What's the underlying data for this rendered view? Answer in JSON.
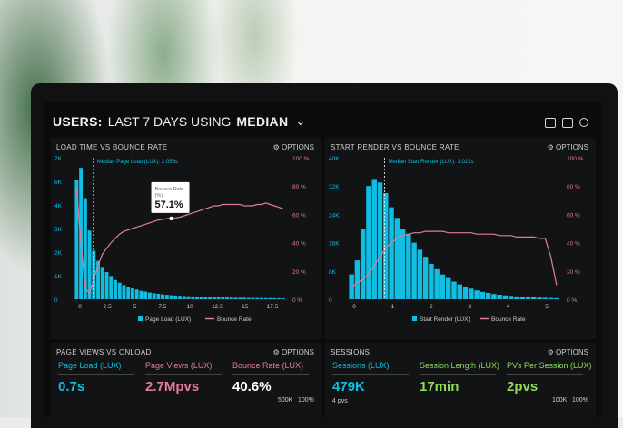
{
  "header": {
    "title_bold": "USERS:",
    "title_rest": "LAST 7 DAYS USING",
    "title_metric": "MEDIAN"
  },
  "options_label": "OPTIONS",
  "colors": {
    "cyan": "#11bde0",
    "pink": "#e47aa0",
    "green": "#8ddb5b",
    "bg": "#0b0b0c",
    "panel": "#121315"
  },
  "icons": [
    "monitor-icon",
    "window-icon",
    "help-icon"
  ],
  "chart_data": [
    {
      "type": "bar",
      "title": "LOAD TIME VS BOUNCE RATE",
      "median_label": "Median Page Load (LUX): 2.056s",
      "tooltip": {
        "label": "Bounce Rate",
        "sub": "(%)",
        "value": "57.1%"
      },
      "y_ticks": [
        "7K",
        "6K",
        "4K",
        "3K",
        "2K",
        "1K",
        "0"
      ],
      "y2_ticks": [
        "100 %",
        "80 %",
        "60 %",
        "40 %",
        "20 %",
        "0 %"
      ],
      "x_ticks": [
        "0",
        "2.5",
        "5",
        "7.5",
        "10",
        "12.5",
        "15",
        "17.5"
      ],
      "ylim": [
        0,
        7000
      ],
      "legend": [
        "Page Load (LUX)",
        "Bounce Rate"
      ],
      "series": [
        {
          "name": "Page Load (LUX)",
          "values": [
            5900,
            6500,
            5000,
            3400,
            2400,
            1900,
            1600,
            1350,
            1150,
            950,
            820,
            700,
            620,
            540,
            480,
            420,
            380,
            330,
            300,
            270,
            240,
            220,
            200,
            185,
            170,
            160,
            150,
            140,
            130,
            120,
            110,
            105,
            100,
            95,
            90,
            85,
            80,
            75,
            70,
            68,
            65,
            62,
            60,
            58,
            55,
            52,
            50,
            48,
            46
          ]
        },
        {
          "name": "Bounce Rate",
          "values": [
            78,
            40,
            8,
            4,
            14,
            24,
            32,
            36,
            40,
            43,
            46,
            48,
            49,
            50,
            51,
            52,
            53,
            54,
            55,
            56,
            56.5,
            57,
            57.1,
            57.5,
            58,
            59,
            60,
            61,
            62,
            63,
            64,
            65,
            66,
            66,
            67,
            67,
            67,
            67,
            67,
            66,
            66,
            66,
            67,
            67,
            68,
            67,
            66,
            65,
            64
          ]
        }
      ]
    },
    {
      "type": "bar",
      "title": "START RENDER VS BOUNCE RATE",
      "median_label": "Median Start Render (LUX): 1.021s",
      "y_ticks": [
        "40K",
        "32K",
        "24K",
        "16K",
        "8K",
        "0"
      ],
      "y2_ticks": [
        "100 %",
        "80 %",
        "60 %",
        "40 %",
        "20 %",
        "0 %"
      ],
      "x_ticks": [
        "0",
        "1",
        "2",
        "3",
        "4",
        "5"
      ],
      "ylim": [
        0,
        40000
      ],
      "legend": [
        "Start Render (LUX)",
        "Bounce Rate"
      ],
      "series": [
        {
          "name": "Start Render (LUX)",
          "values": [
            7000,
            11000,
            20000,
            32000,
            34000,
            33000,
            30000,
            26000,
            23000,
            20000,
            18500,
            16000,
            14000,
            12000,
            10000,
            8500,
            7000,
            6000,
            5000,
            4200,
            3600,
            3000,
            2500,
            2100,
            1800,
            1500,
            1300,
            1100,
            950,
            800,
            700,
            600,
            520,
            460,
            400,
            350,
            300
          ]
        },
        {
          "name": "Bounce Rate",
          "values": [
            8,
            12,
            14,
            18,
            24,
            30,
            36,
            40,
            43,
            45,
            46,
            47,
            47,
            48,
            48,
            48,
            48,
            47,
            47,
            47,
            47,
            47,
            46,
            46,
            46,
            46,
            45,
            45,
            45,
            44,
            44,
            44,
            44,
            43,
            43,
            30,
            10
          ]
        }
      ]
    }
  ],
  "bottom_left": {
    "title": "PAGE VIEWS VS ONLOAD",
    "metrics": [
      {
        "label": "Page Load (LUX)",
        "value": "0.7s",
        "color": "#11bde0"
      },
      {
        "label": "Page Views (LUX)",
        "value": "2.7Mpvs",
        "color": "#e47aa0"
      },
      {
        "label": "Bounce Rate (LUX)",
        "value": "40.6%",
        "color": "#ffffff"
      }
    ],
    "ticks": [
      "500K",
      "100%"
    ]
  },
  "bottom_right": {
    "title": "SESSIONS",
    "metrics": [
      {
        "label": "Sessions (LUX)",
        "value": "479K",
        "sub": "4 pvs",
        "color": "#11bde0"
      },
      {
        "label": "Session Length (LUX)",
        "value": "17min",
        "sub": "",
        "color": "#8ddb5b"
      },
      {
        "label": "PVs Per Session (LUX)",
        "value": "2pvs",
        "sub": "",
        "color": "#8ddb5b"
      }
    ],
    "ticks": [
      "100K",
      "100%"
    ]
  }
}
